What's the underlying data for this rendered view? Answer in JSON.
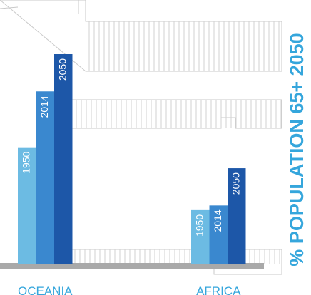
{
  "chart_data": {
    "type": "bar",
    "title": "% POPULATION 65+ 2050",
    "categories": [
      "OCEANIA",
      "AFRICA"
    ],
    "series": [
      {
        "name": "1950",
        "color": "#6cbbe3",
        "values": [
          10,
          4.6
        ]
      },
      {
        "name": "2014",
        "color": "#3a88cf",
        "values": [
          14.8,
          5
        ]
      },
      {
        "name": "2050",
        "color": "#1d57a8",
        "values": [
          18,
          8.2
        ]
      }
    ],
    "ylim": [
      0,
      18
    ]
  }
}
